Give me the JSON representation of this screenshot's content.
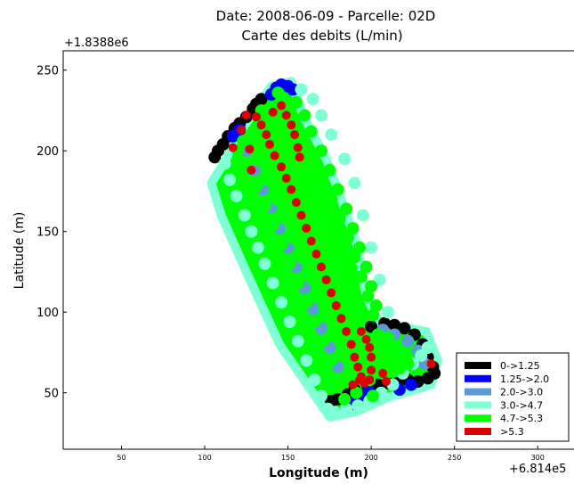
{
  "chart_data": {
    "type": "scatter",
    "title_line1": "Date: 2008-06-09 - Parcelle: 02D",
    "title_line2": "Carte des debits (L/min)",
    "xlabel": "Longitude (m)",
    "ylabel": "Latitude (m)",
    "x_offset_label": "+6.814e5",
    "y_offset_label": "+1.8388e6",
    "xlim": [
      15,
      325
    ],
    "ylim": [
      15,
      262
    ],
    "xticks": [
      {
        "value": 50,
        "label": "50"
      },
      {
        "value": 100,
        "label": "100"
      },
      {
        "value": 150,
        "label": "150"
      },
      {
        "value": 200,
        "label": "200"
      },
      {
        "value": 250,
        "label": "250"
      },
      {
        "value": 300,
        "label": "300"
      }
    ],
    "yticks": [
      {
        "value": 50,
        "label": "50"
      },
      {
        "value": 100,
        "label": "100"
      },
      {
        "value": 150,
        "label": "150"
      },
      {
        "value": 200,
        "label": "200"
      },
      {
        "value": 250,
        "label": "250"
      }
    ],
    "grid": false,
    "legend_position": "lower-right",
    "classes": [
      {
        "label": "0->1.25",
        "color": "#000000"
      },
      {
        "label": "1.25->2.0",
        "color": "#0000ff"
      },
      {
        "label": "2.0->3.0",
        "color": "#5b9bd5"
      },
      {
        "label": "3.0->4.7",
        "color": "#7fffd4"
      },
      {
        "label": "4.7->5.3",
        "color": "#00ff00"
      },
      {
        "label": ">5.3",
        "color": "#dd0000"
      }
    ],
    "field_outline": [
      [
        117,
        205
      ],
      [
        140,
        240
      ],
      [
        152,
        243
      ],
      [
        160,
        220
      ],
      [
        173,
        195
      ],
      [
        182,
        170
      ],
      [
        192,
        140
      ],
      [
        197,
        110
      ],
      [
        205,
        93
      ],
      [
        233,
        88
      ],
      [
        240,
        70
      ],
      [
        236,
        55
      ],
      [
        210,
        47
      ],
      [
        190,
        38
      ],
      [
        175,
        35
      ],
      [
        165,
        50
      ],
      [
        145,
        80
      ],
      [
        125,
        125
      ],
      [
        110,
        160
      ],
      [
        104,
        180
      ],
      [
        113,
        195
      ]
    ],
    "series": [
      {
        "name": "0->1.25",
        "points": [
          [
            106,
            196
          ],
          [
            108,
            200
          ],
          [
            111,
            204
          ],
          [
            114,
            209
          ],
          [
            118,
            214
          ],
          [
            121,
            217
          ],
          [
            125,
            221
          ],
          [
            129,
            226
          ],
          [
            131,
            229
          ],
          [
            134,
            232
          ],
          [
            200,
            91
          ],
          [
            208,
            93
          ],
          [
            214,
            92
          ],
          [
            220,
            90
          ],
          [
            226,
            86
          ],
          [
            231,
            80
          ],
          [
            234,
            72
          ],
          [
            237,
            66
          ],
          [
            238,
            62
          ],
          [
            234,
            59
          ],
          [
            228,
            57
          ],
          [
            222,
            58
          ],
          [
            216,
            56
          ],
          [
            210,
            56
          ],
          [
            204,
            55
          ],
          [
            198,
            54
          ],
          [
            190,
            52
          ],
          [
            186,
            49
          ],
          [
            180,
            46
          ],
          [
            176,
            45
          ]
        ]
      },
      {
        "name": "1.25->2.0",
        "points": [
          [
            117,
            209
          ],
          [
            121,
            213
          ],
          [
            143,
            239
          ],
          [
            146,
            241
          ],
          [
            150,
            240
          ],
          [
            153,
            238
          ],
          [
            140,
            235
          ],
          [
            188,
            43
          ],
          [
            193,
            48
          ],
          [
            198,
            52
          ],
          [
            217,
            52
          ],
          [
            224,
            55
          ]
        ]
      },
      {
        "name": "2.0->3.0",
        "points": [
          [
            125,
            200
          ],
          [
            130,
            188
          ],
          [
            135,
            176
          ],
          [
            140,
            165
          ],
          [
            145,
            152
          ],
          [
            150,
            140
          ],
          [
            155,
            128
          ],
          [
            160,
            115
          ],
          [
            165,
            102
          ],
          [
            170,
            90
          ],
          [
            175,
            78
          ],
          [
            180,
            66
          ],
          [
            232,
            68
          ],
          [
            228,
            76
          ],
          [
            222,
            82
          ],
          [
            214,
            86
          ],
          [
            207,
            89
          ]
        ]
      },
      {
        "name": "3.0->4.7",
        "points": [
          [
            112,
            192
          ],
          [
            115,
            182
          ],
          [
            119,
            172
          ],
          [
            124,
            160
          ],
          [
            128,
            150
          ],
          [
            132,
            140
          ],
          [
            136,
            130
          ],
          [
            141,
            118
          ],
          [
            146,
            106
          ],
          [
            151,
            94
          ],
          [
            156,
            82
          ],
          [
            161,
            70
          ],
          [
            166,
            58
          ],
          [
            170,
            48
          ],
          [
            174,
            40
          ],
          [
            178,
            38
          ],
          [
            185,
            40
          ],
          [
            192,
            42
          ],
          [
            199,
            45
          ],
          [
            206,
            50
          ],
          [
            213,
            55
          ],
          [
            219,
            62
          ],
          [
            225,
            68
          ],
          [
            230,
            73
          ],
          [
            234,
            78
          ],
          [
            200,
            140
          ],
          [
            205,
            120
          ],
          [
            210,
            100
          ],
          [
            195,
            160
          ],
          [
            190,
            180
          ],
          [
            184,
            195
          ],
          [
            176,
            210
          ],
          [
            170,
            222
          ],
          [
            165,
            232
          ],
          [
            158,
            238
          ]
        ]
      },
      {
        "name": "4.7->5.3",
        "points": [
          [
            120,
            200
          ],
          [
            126,
            190
          ],
          [
            131,
            178
          ],
          [
            136,
            166
          ],
          [
            141,
            154
          ],
          [
            146,
            142
          ],
          [
            151,
            130
          ],
          [
            156,
            118
          ],
          [
            161,
            106
          ],
          [
            166,
            94
          ],
          [
            171,
            82
          ],
          [
            176,
            70
          ],
          [
            180,
            58
          ],
          [
            184,
            46
          ],
          [
            134,
            225
          ],
          [
            139,
            214
          ],
          [
            144,
            203
          ],
          [
            149,
            191
          ],
          [
            154,
            179
          ],
          [
            159,
            167
          ],
          [
            164,
            155
          ],
          [
            169,
            143
          ],
          [
            174,
            131
          ],
          [
            179,
            119
          ],
          [
            184,
            107
          ],
          [
            188,
            95
          ],
          [
            192,
            82
          ],
          [
            196,
            70
          ],
          [
            199,
            58
          ],
          [
            201,
            48
          ],
          [
            144,
            236
          ],
          [
            149,
            226
          ],
          [
            155,
            215
          ],
          [
            160,
            204
          ],
          [
            166,
            193
          ],
          [
            171,
            181
          ],
          [
            176,
            170
          ],
          [
            181,
            158
          ],
          [
            186,
            146
          ],
          [
            190,
            134
          ],
          [
            194,
            122
          ],
          [
            198,
            110
          ],
          [
            201,
            98
          ],
          [
            204,
            86
          ],
          [
            207,
            74
          ],
          [
            209,
            62
          ],
          [
            129,
            212
          ],
          [
            123,
            206
          ],
          [
            133,
            194
          ],
          [
            138,
            182
          ],
          [
            143,
            170
          ],
          [
            148,
            158
          ],
          [
            153,
            146
          ],
          [
            158,
            134
          ],
          [
            163,
            122
          ],
          [
            168,
            110
          ],
          [
            173,
            98
          ],
          [
            178,
            86
          ],
          [
            182,
            74
          ],
          [
            187,
            62
          ],
          [
            191,
            50
          ],
          [
            155,
            230
          ],
          [
            160,
            222
          ],
          [
            164,
            212
          ],
          [
            170,
            200
          ],
          [
            175,
            188
          ],
          [
            180,
            176
          ],
          [
            185,
            164
          ],
          [
            189,
            152
          ],
          [
            193,
            140
          ],
          [
            197,
            128
          ],
          [
            200,
            116
          ],
          [
            203,
            104
          ],
          [
            212,
            70
          ],
          [
            217,
            65
          ],
          [
            222,
            68
          ],
          [
            215,
            78
          ],
          [
            210,
            84
          ]
        ]
      },
      {
        "name": ">5.3",
        "points": [
          [
            117,
            202
          ],
          [
            122,
            213
          ],
          [
            125,
            222
          ],
          [
            131,
            221
          ],
          [
            134,
            216
          ],
          [
            137,
            210
          ],
          [
            139,
            204
          ],
          [
            142,
            197
          ],
          [
            146,
            190
          ],
          [
            149,
            183
          ],
          [
            152,
            176
          ],
          [
            155,
            168
          ],
          [
            158,
            160
          ],
          [
            161,
            152
          ],
          [
            164,
            144
          ],
          [
            167,
            136
          ],
          [
            170,
            128
          ],
          [
            173,
            120
          ],
          [
            176,
            112
          ],
          [
            179,
            104
          ],
          [
            182,
            96
          ],
          [
            185,
            88
          ],
          [
            188,
            80
          ],
          [
            190,
            72
          ],
          [
            192,
            66
          ],
          [
            194,
            60
          ],
          [
            196,
            56
          ],
          [
            189,
            55
          ],
          [
            193,
            58
          ],
          [
            146,
            228
          ],
          [
            149,
            222
          ],
          [
            152,
            216
          ],
          [
            154,
            210
          ],
          [
            156,
            202
          ],
          [
            157,
            196
          ],
          [
            194,
            88
          ],
          [
            197,
            83
          ],
          [
            199,
            78
          ],
          [
            200,
            72
          ],
          [
            200,
            64
          ],
          [
            199,
            58
          ],
          [
            207,
            62
          ],
          [
            209,
            57
          ],
          [
            236,
            68
          ],
          [
            141,
            224
          ],
          [
            127,
            201
          ],
          [
            128,
            188
          ]
        ]
      }
    ]
  }
}
